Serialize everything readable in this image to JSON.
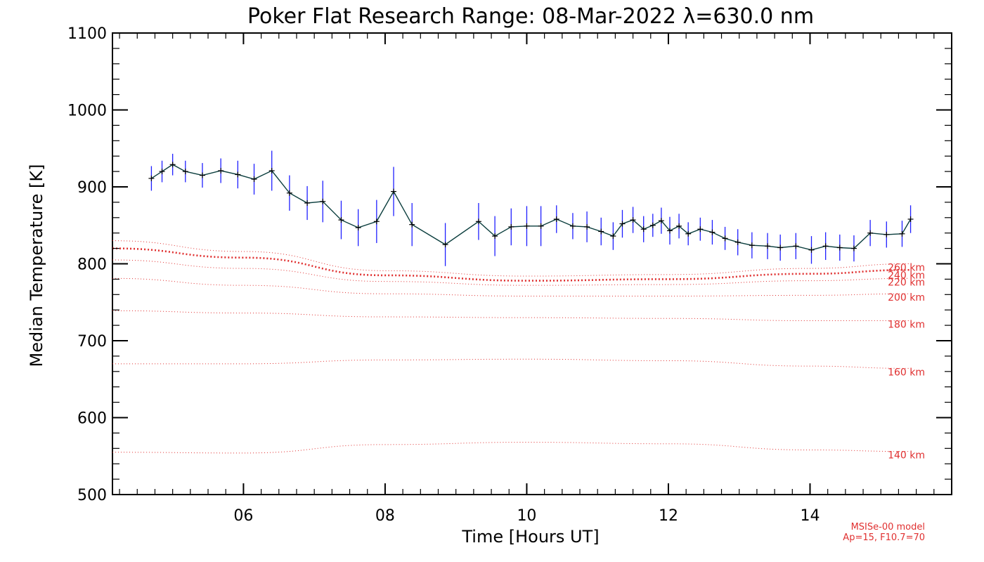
{
  "chart_data": {
    "type": "line",
    "title": "Poker Flat Research Range: 08-Mar-2022 λ=630.0 nm",
    "xlabel": "Time [Hours UT]",
    "ylabel": "Median Temperature [K]",
    "xlim": [
      4.15,
      16.0
    ],
    "ylim": [
      500,
      1100
    ],
    "xticks": [
      6,
      8,
      10,
      12,
      14
    ],
    "xtick_labels": [
      "06",
      "08",
      "10",
      "12",
      "14"
    ],
    "yticks": [
      500,
      600,
      700,
      800,
      900,
      1000,
      1100
    ],
    "ytick_labels": [
      "500",
      "600",
      "700",
      "800",
      "900",
      "1000",
      "1100"
    ],
    "grid": false,
    "colors": {
      "measurement_line": "#0a3d3d",
      "error_bars": "#2020ff",
      "model_lines": "#e03030",
      "axes": "#000000"
    },
    "measurements": {
      "name": "",
      "x": [
        4.7,
        4.85,
        5.0,
        5.18,
        5.42,
        5.68,
        5.92,
        6.15,
        6.4,
        6.65,
        6.9,
        7.12,
        7.38,
        7.62,
        7.88,
        8.12,
        8.38,
        8.85,
        9.32,
        9.55,
        9.78,
        10.0,
        10.2,
        10.42,
        10.65,
        10.85,
        11.05,
        11.22,
        11.35,
        11.5,
        11.65,
        11.78,
        11.9,
        12.02,
        12.15,
        12.28,
        12.45,
        12.62,
        12.8,
        12.98,
        13.18,
        13.4,
        13.58,
        13.8,
        14.02,
        14.22,
        14.42,
        14.62,
        14.85,
        15.08,
        15.3,
        15.42
      ],
      "y": [
        911,
        920,
        929,
        920,
        915,
        921,
        916,
        910,
        921,
        892,
        879,
        881,
        857,
        847,
        855,
        894,
        851,
        825,
        855,
        836,
        848,
        849,
        849,
        858,
        849,
        848,
        842,
        836,
        852,
        857,
        845,
        850,
        856,
        843,
        849,
        839,
        845,
        841,
        833,
        828,
        824,
        823,
        821,
        823,
        818,
        823,
        821,
        820,
        840,
        838,
        839,
        858
      ],
      "err": [
        16,
        14,
        14,
        14,
        16,
        16,
        18,
        20,
        26,
        23,
        22,
        27,
        25,
        24,
        28,
        32,
        28,
        28,
        24,
        26,
        24,
        26,
        26,
        18,
        17,
        20,
        18,
        18,
        18,
        17,
        17,
        15,
        17,
        18,
        16,
        15,
        15,
        16,
        15,
        17,
        17,
        17,
        17,
        17,
        18,
        18,
        17,
        17,
        17,
        17,
        17,
        18
      ]
    },
    "model_curves": [
      {
        "name": "140 km",
        "x": [
          4.15,
          6.0,
          8.0,
          10.0,
          12.0,
          14.0,
          15.4
        ],
        "y": [
          555,
          554,
          565,
          568,
          566,
          558,
          556
        ],
        "thick": false
      },
      {
        "name": "160 km",
        "x": [
          4.15,
          6.0,
          8.0,
          10.0,
          12.0,
          14.0,
          15.4
        ],
        "y": [
          670,
          670,
          675,
          676,
          674,
          667,
          664
        ],
        "thick": false
      },
      {
        "name": "180 km",
        "x": [
          4.15,
          6.0,
          8.0,
          10.0,
          12.0,
          14.0,
          15.4
        ],
        "y": [
          739,
          736,
          731,
          730,
          729,
          726,
          726
        ],
        "thick": false
      },
      {
        "name": "200 km",
        "x": [
          4.15,
          6.0,
          8.0,
          10.0,
          12.0,
          14.0,
          15.4
        ],
        "y": [
          781,
          772,
          761,
          758,
          758,
          759,
          761
        ],
        "thick": false
      },
      {
        "name": "220 km",
        "x": [
          4.15,
          6.0,
          8.0,
          10.0,
          12.0,
          14.0,
          15.4
        ],
        "y": [
          805,
          794,
          777,
          772,
          773,
          778,
          781
        ],
        "thick": false
      },
      {
        "name": "240 km",
        "x": [
          4.15,
          6.0,
          8.0,
          10.0,
          12.0,
          14.0,
          15.4
        ],
        "y": [
          820,
          808,
          785,
          778,
          780,
          787,
          792
        ],
        "thick": true
      },
      {
        "name": "260 km",
        "x": [
          4.15,
          6.0,
          8.0,
          10.0,
          12.0,
          14.0,
          15.4
        ],
        "y": [
          830,
          816,
          791,
          784,
          786,
          794,
          800
        ],
        "thick": false
      }
    ],
    "model_label_positions_text": [
      "260 km",
      "240 km",
      "220 km",
      "200 km",
      "180 km",
      "160 km",
      "140 km"
    ],
    "annotations": [
      "MSISe-00 model",
      "Ap=15, F10.7=70"
    ]
  }
}
